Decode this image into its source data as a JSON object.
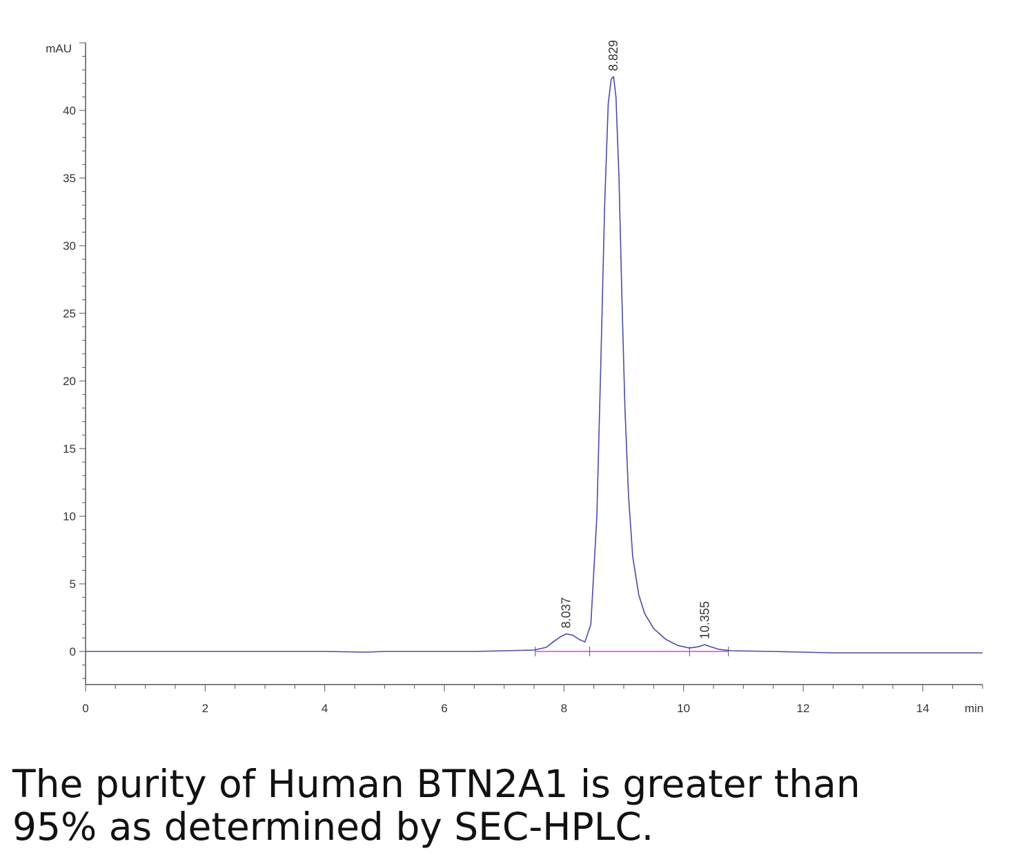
{
  "chart_data": {
    "type": "line",
    "xlabel": "min",
    "ylabel": "mAU",
    "xlim": [
      0,
      15
    ],
    "ylim": [
      -2.5,
      45
    ],
    "x_ticks": [
      0,
      2,
      4,
      6,
      8,
      10,
      12,
      14
    ],
    "y_ticks": [
      0,
      5,
      10,
      15,
      20,
      25,
      30,
      35,
      40
    ],
    "colors": {
      "trace": "#4a4aa8",
      "baseline": "#e040e0",
      "axis": "#555555"
    },
    "peaks": [
      {
        "label": "8.037",
        "rt": 8.037,
        "height": 1.3
      },
      {
        "label": "8.829",
        "rt": 8.829,
        "height": 42.5
      },
      {
        "label": "10.355",
        "rt": 10.355,
        "height": 0.5
      }
    ],
    "series": [
      {
        "x": [
          0,
          1.0,
          1.2,
          2.0,
          3.0,
          4.0,
          4.7,
          5.0,
          6.0,
          6.5,
          7.0,
          7.5,
          7.7,
          7.85,
          7.95,
          8.037,
          8.15,
          8.25,
          8.35,
          8.45,
          8.55,
          8.62,
          8.68,
          8.74,
          8.79,
          8.829,
          8.87,
          8.92,
          8.97,
          9.02,
          9.08,
          9.15,
          9.25,
          9.35,
          9.5,
          9.7,
          9.9,
          10.1,
          10.25,
          10.355,
          10.45,
          10.6,
          10.8,
          11.5,
          12.0,
          12.5,
          13.0,
          14.0,
          15.0
        ],
        "y": [
          0,
          0,
          0,
          0,
          0,
          0,
          -0.05,
          0,
          0,
          0,
          0.05,
          0.1,
          0.3,
          0.8,
          1.1,
          1.3,
          1.2,
          0.9,
          0.7,
          2.0,
          10.0,
          22.0,
          33.0,
          40.5,
          42.3,
          42.5,
          41.0,
          35.0,
          26.0,
          18.0,
          11.5,
          7.0,
          4.2,
          2.8,
          1.7,
          0.9,
          0.45,
          0.25,
          0.35,
          0.5,
          0.35,
          0.15,
          0.05,
          0,
          -0.05,
          -0.1,
          -0.1,
          -0.1,
          -0.1
        ]
      }
    ]
  },
  "caption": {
    "line1": "The purity of Human BTN2A1 is greater than",
    "line2": "95% as determined by SEC-HPLC."
  }
}
